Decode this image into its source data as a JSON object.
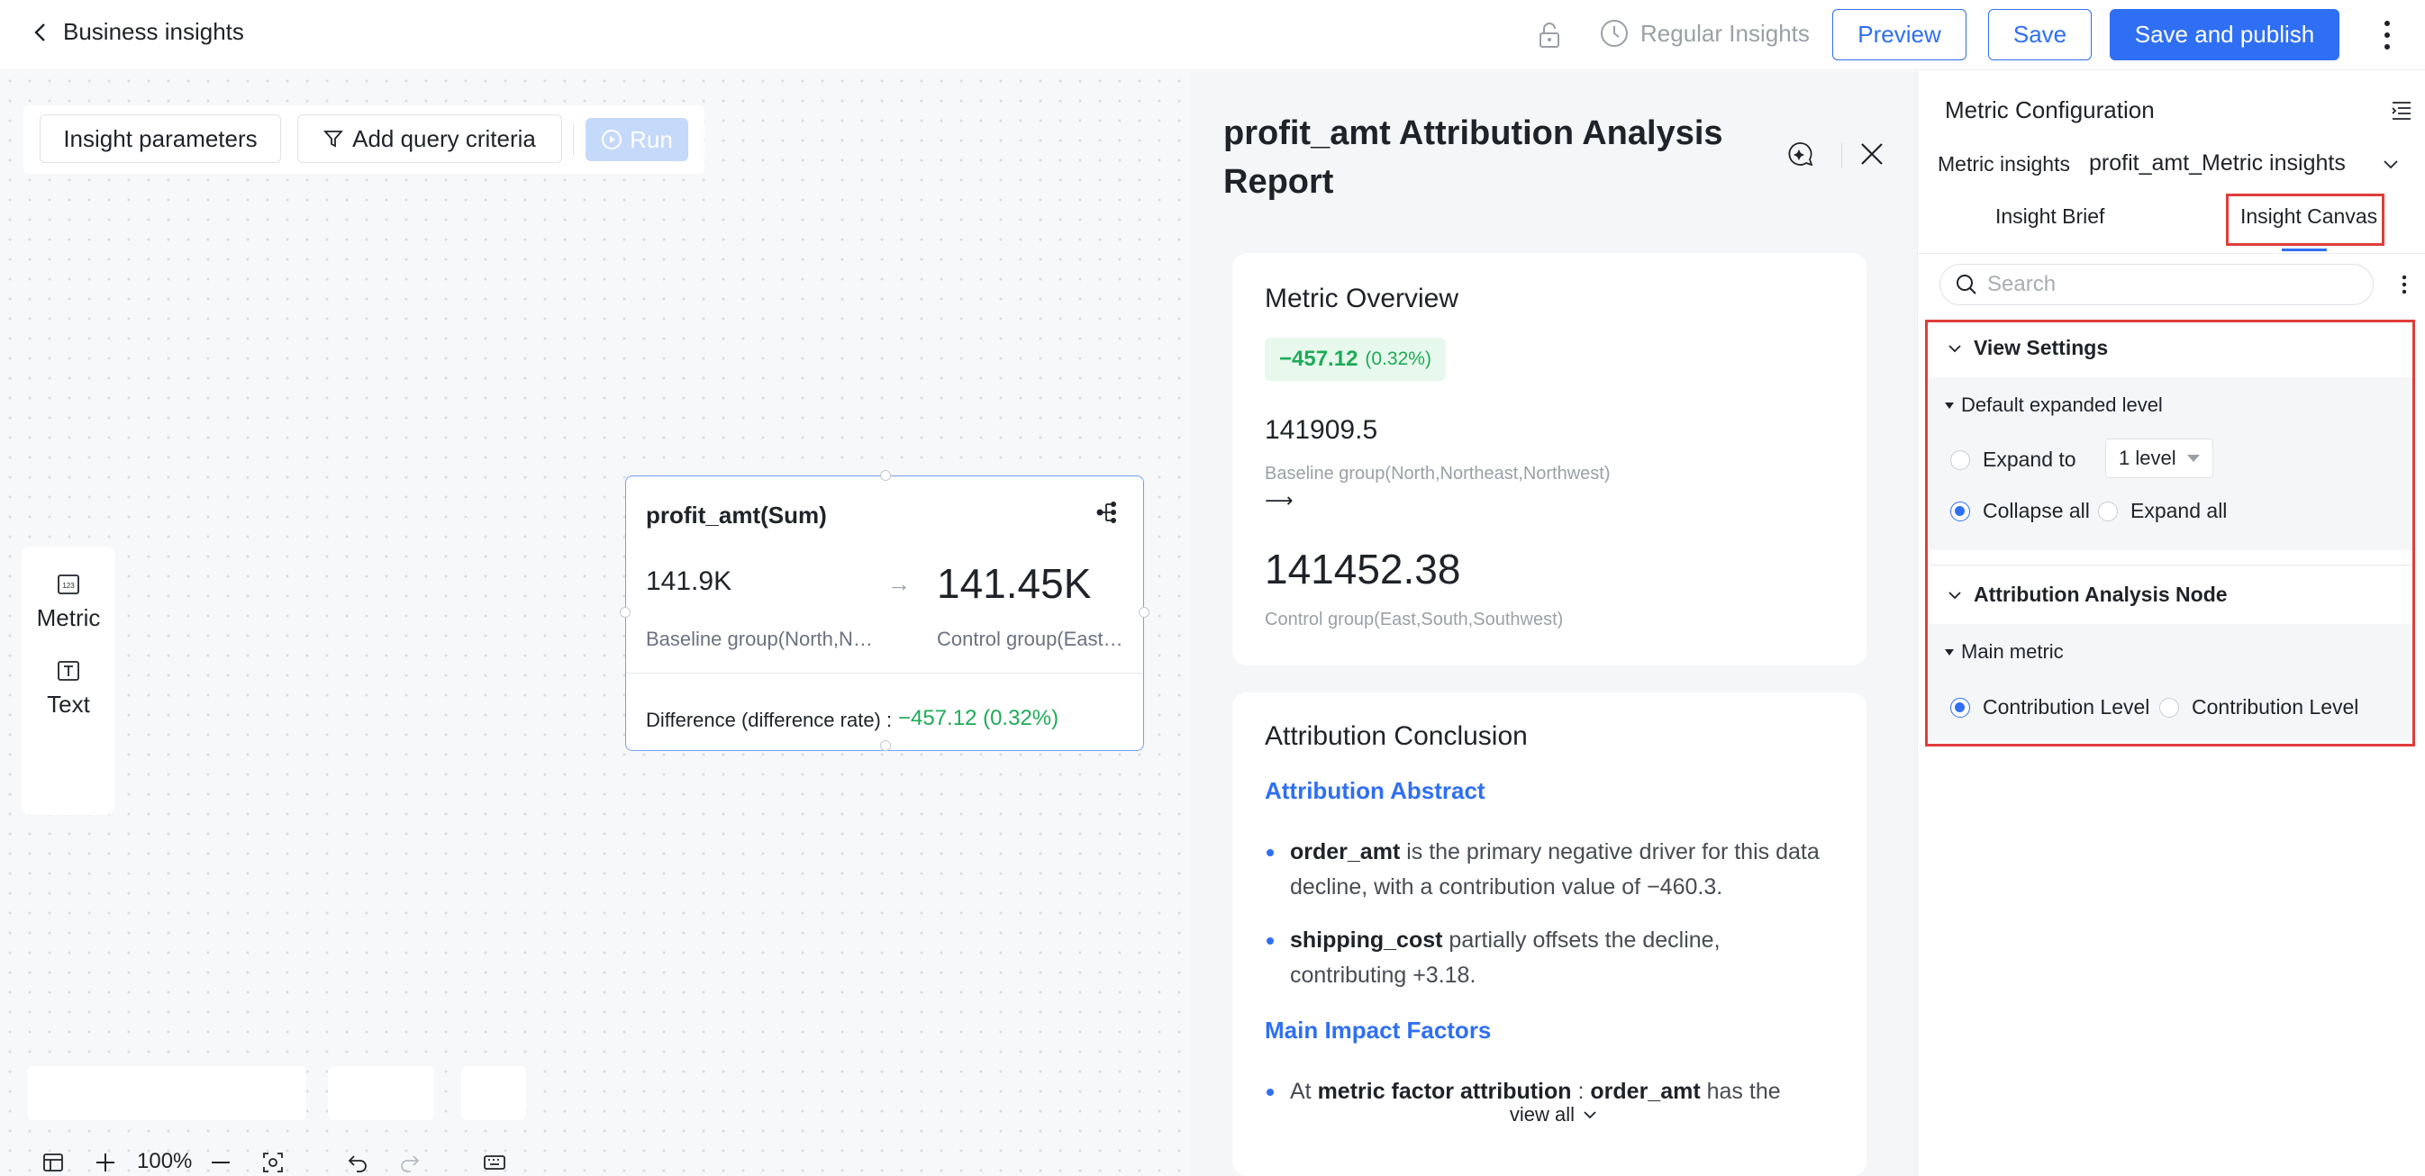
{
  "header": {
    "back_label": "Business insights",
    "regular_insights": "Regular Insights",
    "preview": "Preview",
    "save": "Save",
    "save_publish": "Save and publish"
  },
  "canvas": {
    "insight_parameters": "Insight parameters",
    "add_query": "Add query criteria",
    "run": "Run",
    "tools": [
      {
        "label": "Metric",
        "icon": "metric-icon"
      },
      {
        "label": "Text",
        "icon": "text-icon"
      }
    ],
    "node": {
      "title": "profit_amt(Sum)",
      "baseline_value": "141.9K",
      "control_value": "141.45K",
      "baseline_label": "Baseline group(North,Northeast,Northwest)",
      "control_label": "Control group(East,South,Southwest)",
      "diff_label": "Difference (difference rate) :",
      "diff_value": "−457.12 (0.32%)"
    },
    "zoom": "100%"
  },
  "report": {
    "title": "profit_amt Attribution Analysis Report",
    "overview": {
      "heading": "Metric Overview",
      "chip_value": "−457.12",
      "chip_pct": "(0.32%)",
      "baseline_value": "141909.5",
      "baseline_label": "Baseline group(North,Northeast,Northwest)",
      "arrow": "⟶",
      "control_value": "141452.38",
      "control_label": "Control group(East,South,Southwest)"
    },
    "conclusion": {
      "heading": "Attribution Conclusion",
      "abstract_title": "Attribution Abstract",
      "bullet1_bold": "order_amt",
      "bullet1_text": " is the primary negative driver for this data decline, with a contribution value of −460.3.",
      "bullet2_bold": "shipping_cost",
      "bullet2_text": " partially offsets the decline, contributing +3.18.",
      "factors_title": "Main Impact Factors",
      "bullet3_pre": "At ",
      "bullet3_bold1": "metric factor attribution",
      "bullet3_mid": " : ",
      "bullet3_bold2": "order_amt",
      "bullet3_text": " has the",
      "view_all": "view all"
    }
  },
  "config": {
    "title": "Metric Configuration",
    "metric_insights_label": "Metric insights",
    "metric_insights_value": "profit_amt_Metric insights",
    "tab_brief": "Insight Brief",
    "tab_canvas": "Insight Canvas",
    "search_placeholder": "Search",
    "view_settings": "View Settings",
    "default_level": "Default expanded level",
    "expand_to": "Expand to",
    "level_value": "1 level",
    "collapse_all": "Collapse all",
    "expand_all": "Expand all",
    "attr_node": "Attribution Analysis Node",
    "main_metric": "Main metric",
    "contribution1": "Contribution Level",
    "contribution2": "Contribution Level"
  }
}
